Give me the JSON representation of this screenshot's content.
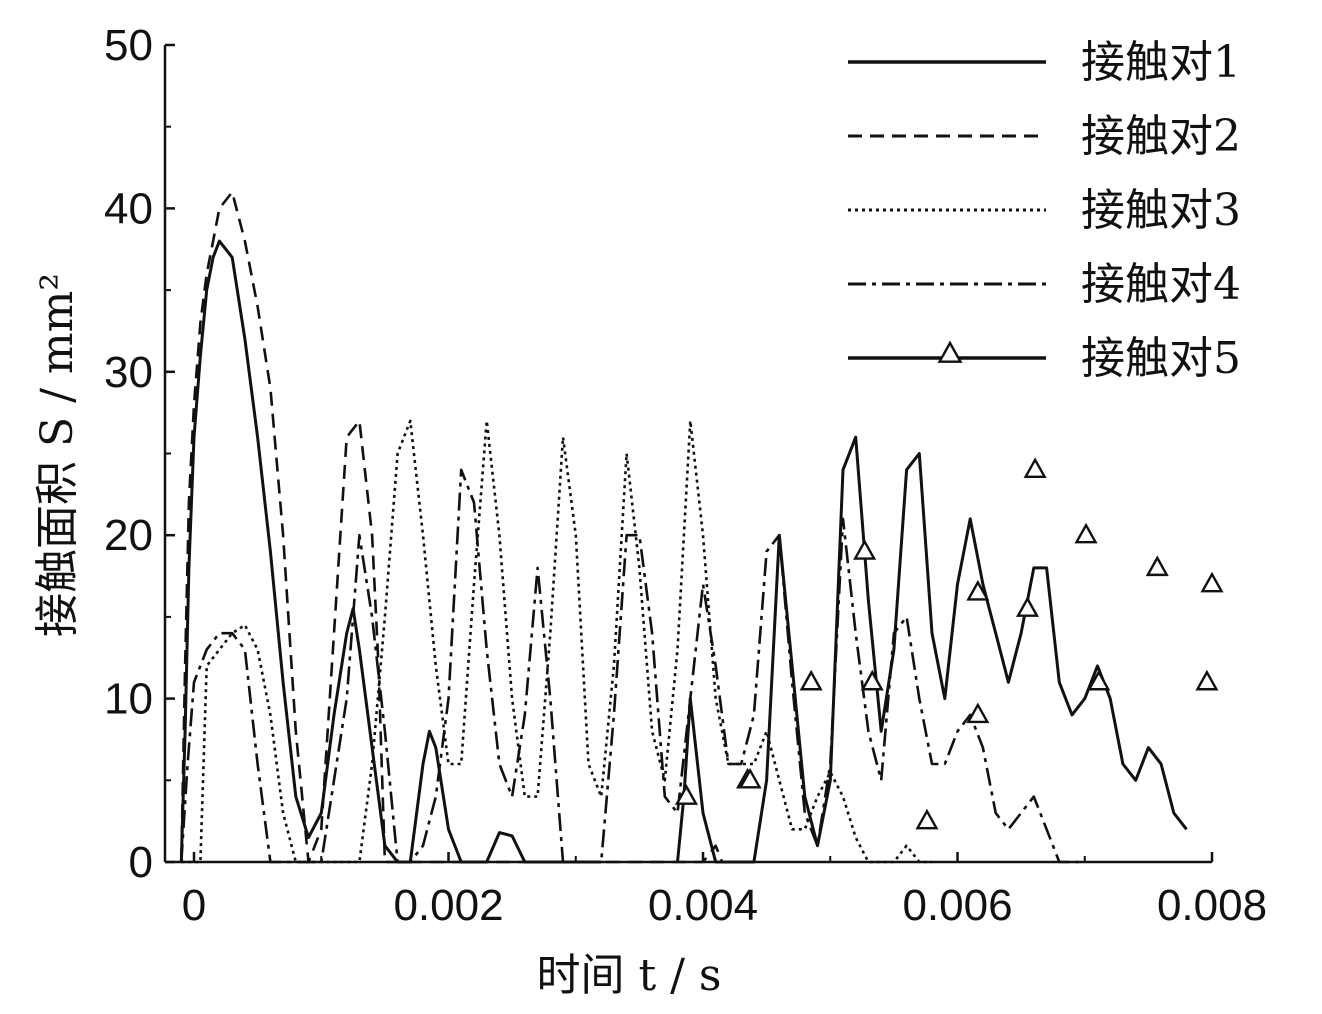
{
  "chart_data": {
    "type": "line",
    "xlabel": "时间 t / s",
    "ylabel": "接触面积 S / mm²",
    "xlim": [
      -0.0001,
      0.0078
    ],
    "ylim": [
      0,
      50
    ],
    "xticks": [
      0,
      0.002,
      0.004,
      0.006,
      0.008
    ],
    "xtick_labels": [
      "0",
      "0.002",
      "0.004",
      "0.006",
      "0.008"
    ],
    "yticks": [
      0,
      10,
      20,
      30,
      40,
      50
    ],
    "ytick_labels": [
      "0",
      "10",
      "20",
      "30",
      "40",
      "50"
    ],
    "legend_position": "top-right",
    "grid": false,
    "series": [
      {
        "name": "接触对1",
        "style": "solid",
        "x": [
          -0.0001,
          -7e-05,
          -4e-05,
          0,
          5e-05,
          0.0001,
          0.00015,
          0.0002,
          0.0003,
          0.0004,
          0.0005,
          0.0006,
          0.0007,
          0.0008,
          0.0009,
          0.001,
          0.0011,
          0.0012,
          0.00125,
          0.0013,
          0.0014,
          0.0015,
          0.0016,
          0.0017,
          0.0018,
          0.00185,
          0.0019,
          0.002,
          0.0021,
          0.0022,
          0.0023,
          0.0024,
          0.0025,
          0.0026,
          0.0027,
          0.0028,
          0.0029,
          0.003,
          0.0031,
          0.0032
        ],
        "y": [
          0,
          8,
          18,
          26,
          31,
          35,
          37,
          38,
          37,
          32,
          26,
          19,
          11,
          4,
          1.5,
          3,
          9,
          14,
          15.5,
          13,
          7,
          1,
          0,
          0,
          6,
          8,
          7,
          2,
          0,
          0,
          0,
          1.8,
          1.6,
          0,
          0,
          0,
          0,
          0,
          0,
          0
        ]
      },
      {
        "name": "接触对2",
        "style": "dashed",
        "x": [
          -0.0001,
          -7e-05,
          -4e-05,
          0,
          5e-05,
          0.0001,
          0.00015,
          0.0002,
          0.0003,
          0.0004,
          0.0005,
          0.0006,
          0.0007,
          0.0008,
          0.0009,
          0.001,
          0.0011,
          0.0012,
          0.0013,
          0.0014,
          0.00145,
          0.0015,
          0.0016,
          0.0017,
          0.0018,
          0.0019,
          0.002,
          0.0021,
          0.0022,
          0.0023,
          0.0024,
          0.0025,
          0.0026,
          0.0027,
          0.0028,
          0.0029,
          0.003,
          0.0031,
          0.0032,
          0.0033,
          0.0034,
          0.0035,
          0.0036,
          0.0037,
          0.0038,
          0.0039,
          0.004,
          0.0041,
          0.00415
        ],
        "y": [
          0,
          12,
          22,
          28,
          33,
          36,
          38,
          40,
          41,
          38,
          34,
          29,
          20,
          8,
          0,
          2,
          14,
          26,
          27,
          20,
          12,
          0,
          0,
          0,
          0,
          0,
          0,
          0,
          0,
          0,
          0,
          0,
          0,
          0,
          0,
          0,
          0,
          0,
          0,
          0,
          0,
          0,
          0,
          0,
          0,
          0,
          0,
          1,
          0
        ]
      },
      {
        "name": "接触对3",
        "style": "dotted",
        "x": [
          -0.0001,
          5e-05,
          0.0001,
          0.0002,
          0.0003,
          0.0004,
          0.0005,
          0.0006,
          0.0007,
          0.0008,
          0.0009,
          0.001,
          0.0011,
          0.0012,
          0.0013,
          0.0014,
          0.0015,
          0.0016,
          0.0017,
          0.0018,
          0.0019,
          0.002,
          0.0021,
          0.0022,
          0.0023,
          0.0024,
          0.0025,
          0.0026,
          0.0027,
          0.0028,
          0.0029,
          0.003,
          0.0031,
          0.0032,
          0.0033,
          0.0034,
          0.0035,
          0.0036,
          0.0037,
          0.0038,
          0.0039,
          0.004,
          0.0041,
          0.0042,
          0.0043,
          0.0044,
          0.0045,
          0.0046,
          0.0047,
          0.0048,
          0.0049,
          0.005,
          0.0051,
          0.0052,
          0.0053,
          0.0054,
          0.0055,
          0.0056,
          0.0057,
          0.0058
        ],
        "y": [
          0,
          0,
          12,
          13,
          14,
          14.5,
          13,
          9,
          3,
          0,
          0,
          0,
          0,
          0,
          0,
          6,
          15,
          25,
          27,
          20,
          12,
          6,
          6,
          17,
          27,
          20,
          10,
          4,
          4,
          14,
          26,
          20,
          6,
          4,
          12,
          25,
          18,
          8,
          5,
          13,
          27,
          20,
          10,
          6,
          6,
          6,
          8,
          5,
          2,
          2,
          4,
          5.5,
          4,
          1.5,
          0,
          0,
          0,
          1,
          0,
          0
        ]
      },
      {
        "name": "接触对4",
        "style": "dashdot",
        "x": [
          -0.0001,
          -5e-05,
          0,
          0.0001,
          0.0002,
          0.0003,
          0.0004,
          0.0005,
          0.0006,
          0.0007,
          0.0008,
          0.0009,
          0.001,
          0.0011,
          0.0012,
          0.0013,
          0.0014,
          0.0015,
          0.0016,
          0.0017,
          0.0018,
          0.0019,
          0.002,
          0.0021,
          0.0022,
          0.0023,
          0.0024,
          0.0025,
          0.0026,
          0.0027,
          0.0028,
          0.0029,
          0.003,
          0.0031,
          0.0032,
          0.0033,
          0.0034,
          0.0035,
          0.0036,
          0.0037,
          0.0038,
          0.0039,
          0.004,
          0.0041,
          0.0042,
          0.0043,
          0.0044,
          0.0045,
          0.0046,
          0.0047,
          0.0048,
          0.0049,
          0.005,
          0.0051,
          0.0052,
          0.0053,
          0.0054,
          0.0055,
          0.0056,
          0.0057,
          0.0058,
          0.0059,
          0.006,
          0.0061,
          0.0062,
          0.0063,
          0.0064,
          0.0065,
          0.0066,
          0.0067,
          0.0068,
          0.0069,
          0.007
        ],
        "y": [
          0,
          6,
          11,
          13,
          14,
          14,
          13,
          6,
          0,
          0,
          0,
          0,
          0,
          5,
          10,
          20,
          15,
          8,
          0,
          0,
          1,
          4,
          10,
          24,
          22,
          13,
          6,
          4,
          9,
          18,
          10,
          0,
          0,
          0,
          0,
          9,
          20,
          20,
          14,
          4,
          3,
          10,
          17,
          12,
          6,
          6,
          9,
          19,
          20,
          11,
          3,
          1,
          6,
          21,
          14,
          8,
          5,
          14,
          15,
          10,
          6,
          6,
          8,
          9,
          7,
          3,
          2,
          3,
          4,
          2,
          0,
          0,
          0
        ]
      },
      {
        "name": "接触对5",
        "style": "solid-triangle",
        "x": [
          0.0038,
          0.00385,
          0.0039,
          0.004,
          0.0041,
          0.0042,
          0.0043,
          0.0044,
          0.0045,
          0.0046,
          0.0047,
          0.0048,
          0.0049,
          0.005,
          0.0051,
          0.0052,
          0.0053,
          0.0054,
          0.0055,
          0.0056,
          0.0057,
          0.0058,
          0.0059,
          0.006,
          0.0061,
          0.0062,
          0.0063,
          0.0064,
          0.0065,
          0.0066,
          0.0067,
          0.0068,
          0.0069,
          0.007,
          0.0071,
          0.0072,
          0.0073,
          0.0074,
          0.0075,
          0.0076,
          0.0077,
          0.0078
        ],
        "y": [
          0,
          4,
          10,
          3,
          0,
          0,
          0,
          0,
          5,
          20,
          12,
          4,
          1,
          5,
          24,
          26,
          16,
          8,
          13,
          24,
          25,
          14,
          10,
          17,
          21,
          17,
          14,
          11,
          14,
          18,
          18,
          11,
          9,
          10,
          12,
          10,
          6,
          5,
          7,
          6,
          3,
          2
        ],
        "marker_x": [
          0.00387,
          0.00435,
          0.00437,
          0.00485,
          0.00527,
          0.00533,
          0.00576,
          0.00616,
          0.00616,
          0.00661,
          0.00655,
          0.00711,
          0.00701,
          0.00757,
          0.00796,
          0.008
        ],
        "marker_y": [
          4,
          5,
          5,
          11,
          19,
          11,
          2.5,
          9,
          16.5,
          24,
          15.5,
          11,
          20,
          18,
          11,
          17
        ]
      }
    ]
  }
}
